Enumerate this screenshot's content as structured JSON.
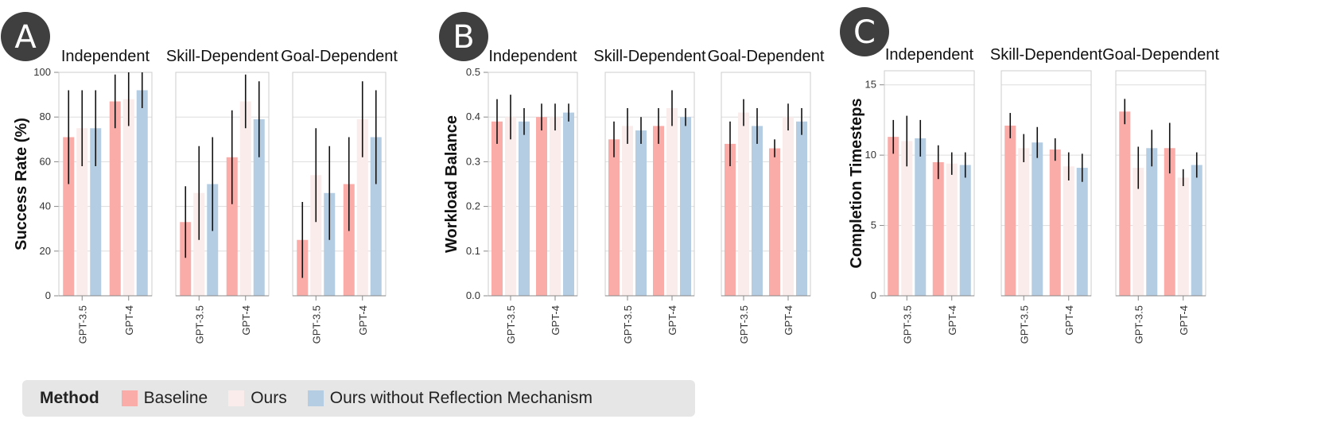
{
  "colors": {
    "Baseline": "#f9aca8",
    "Ours": "#faecea",
    "Ours without Reflection Mechanism": "#b4cde3",
    "badge": "#3f3f3f",
    "error": "#111111",
    "frame": "#cccccc",
    "grid": "#dddddd"
  },
  "legend": {
    "title": "Method",
    "items": [
      "Baseline",
      "Ours",
      "Ours without Reflection Mechanism"
    ]
  },
  "chart_data": [
    {
      "panel": "A",
      "type": "bar",
      "ylabel": "Success Rate (%)",
      "ylim": [
        0,
        100
      ],
      "yticks": [
        0,
        20,
        40,
        60,
        80,
        100
      ],
      "grid": true,
      "categories": [
        "GPT-3.5",
        "GPT-4"
      ],
      "facets": [
        {
          "title": "Independent",
          "series": [
            {
              "name": "Baseline",
              "values": [
                71,
                87
              ],
              "err": [
                21,
                12
              ]
            },
            {
              "name": "Ours",
              "values": [
                75,
                88
              ],
              "err": [
                17,
                12
              ]
            },
            {
              "name": "Ours without Reflection Mechanism",
              "values": [
                75,
                92
              ],
              "err": [
                17,
                8
              ]
            }
          ]
        },
        {
          "title": "Skill-Dependent",
          "series": [
            {
              "name": "Baseline",
              "values": [
                33,
                62
              ],
              "err": [
                16,
                21
              ]
            },
            {
              "name": "Ours",
              "values": [
                46,
                87
              ],
              "err": [
                21,
                12
              ]
            },
            {
              "name": "Ours without Reflection Mechanism",
              "values": [
                50,
                79
              ],
              "err": [
                21,
                17
              ]
            }
          ]
        },
        {
          "title": "Goal-Dependent",
          "series": [
            {
              "name": "Baseline",
              "values": [
                25,
                50
              ],
              "err": [
                17,
                21
              ]
            },
            {
              "name": "Ours",
              "values": [
                54,
                79
              ],
              "err": [
                21,
                17
              ]
            },
            {
              "name": "Ours without Reflection Mechanism",
              "values": [
                46,
                71
              ],
              "err": [
                21,
                21
              ]
            }
          ]
        }
      ]
    },
    {
      "panel": "B",
      "type": "bar",
      "ylabel": "Workload Balance",
      "ylim": [
        0,
        0.5
      ],
      "yticks": [
        0.0,
        0.1,
        0.2,
        0.3,
        0.4,
        0.5
      ],
      "ytick_labels": [
        "0.0",
        "0.1",
        "0.2",
        "0.3",
        "0.4",
        "0.5"
      ],
      "grid": true,
      "categories": [
        "GPT-3.5",
        "GPT-4"
      ],
      "facets": [
        {
          "title": "Independent",
          "series": [
            {
              "name": "Baseline",
              "values": [
                0.39,
                0.4
              ],
              "err": [
                0.05,
                0.03
              ]
            },
            {
              "name": "Ours",
              "values": [
                0.4,
                0.4
              ],
              "err": [
                0.05,
                0.03
              ]
            },
            {
              "name": "Ours without Reflection Mechanism",
              "values": [
                0.39,
                0.41
              ],
              "err": [
                0.03,
                0.02
              ]
            }
          ]
        },
        {
          "title": "Skill-Dependent",
          "series": [
            {
              "name": "Baseline",
              "values": [
                0.35,
                0.38
              ],
              "err": [
                0.04,
                0.04
              ]
            },
            {
              "name": "Ours",
              "values": [
                0.38,
                0.42
              ],
              "err": [
                0.04,
                0.04
              ]
            },
            {
              "name": "Ours without Reflection Mechanism",
              "values": [
                0.37,
                0.4
              ],
              "err": [
                0.03,
                0.02
              ]
            }
          ]
        },
        {
          "title": "Goal-Dependent",
          "series": [
            {
              "name": "Baseline",
              "values": [
                0.34,
                0.33
              ],
              "err": [
                0.05,
                0.02
              ]
            },
            {
              "name": "Ours",
              "values": [
                0.41,
                0.4
              ],
              "err": [
                0.03,
                0.03
              ]
            },
            {
              "name": "Ours without Reflection Mechanism",
              "values": [
                0.38,
                0.39
              ],
              "err": [
                0.04,
                0.03
              ]
            }
          ]
        }
      ]
    },
    {
      "panel": "C",
      "type": "bar",
      "ylabel": "Completion Timesteps",
      "ylim": [
        0,
        16
      ],
      "yticks": [
        0,
        5,
        10,
        15
      ],
      "grid": true,
      "categories": [
        "GPT-3.5",
        "GPT-4"
      ],
      "facets": [
        {
          "title": "Independent",
          "series": [
            {
              "name": "Baseline",
              "values": [
                11.3,
                9.5
              ],
              "err": [
                1.2,
                1.2
              ]
            },
            {
              "name": "Ours",
              "values": [
                11.0,
                9.4
              ],
              "err": [
                1.8,
                0.8
              ]
            },
            {
              "name": "Ours without Reflection Mechanism",
              "values": [
                11.2,
                9.3
              ],
              "err": [
                1.3,
                0.9
              ]
            }
          ]
        },
        {
          "title": "Skill-Dependent",
          "series": [
            {
              "name": "Baseline",
              "values": [
                12.1,
                10.4
              ],
              "err": [
                0.9,
                0.8
              ]
            },
            {
              "name": "Ours",
              "values": [
                10.5,
                9.2
              ],
              "err": [
                1.0,
                1.0
              ]
            },
            {
              "name": "Ours without Reflection Mechanism",
              "values": [
                10.9,
                9.1
              ],
              "err": [
                1.1,
                1.0
              ]
            }
          ]
        },
        {
          "title": "Goal-Dependent",
          "series": [
            {
              "name": "Baseline",
              "values": [
                13.1,
                10.5
              ],
              "err": [
                0.9,
                1.8
              ]
            },
            {
              "name": "Ours",
              "values": [
                9.1,
                8.4
              ],
              "err": [
                1.5,
                0.6
              ]
            },
            {
              "name": "Ours without Reflection Mechanism",
              "values": [
                10.5,
                9.3
              ],
              "err": [
                1.3,
                0.9
              ]
            }
          ]
        }
      ]
    }
  ]
}
